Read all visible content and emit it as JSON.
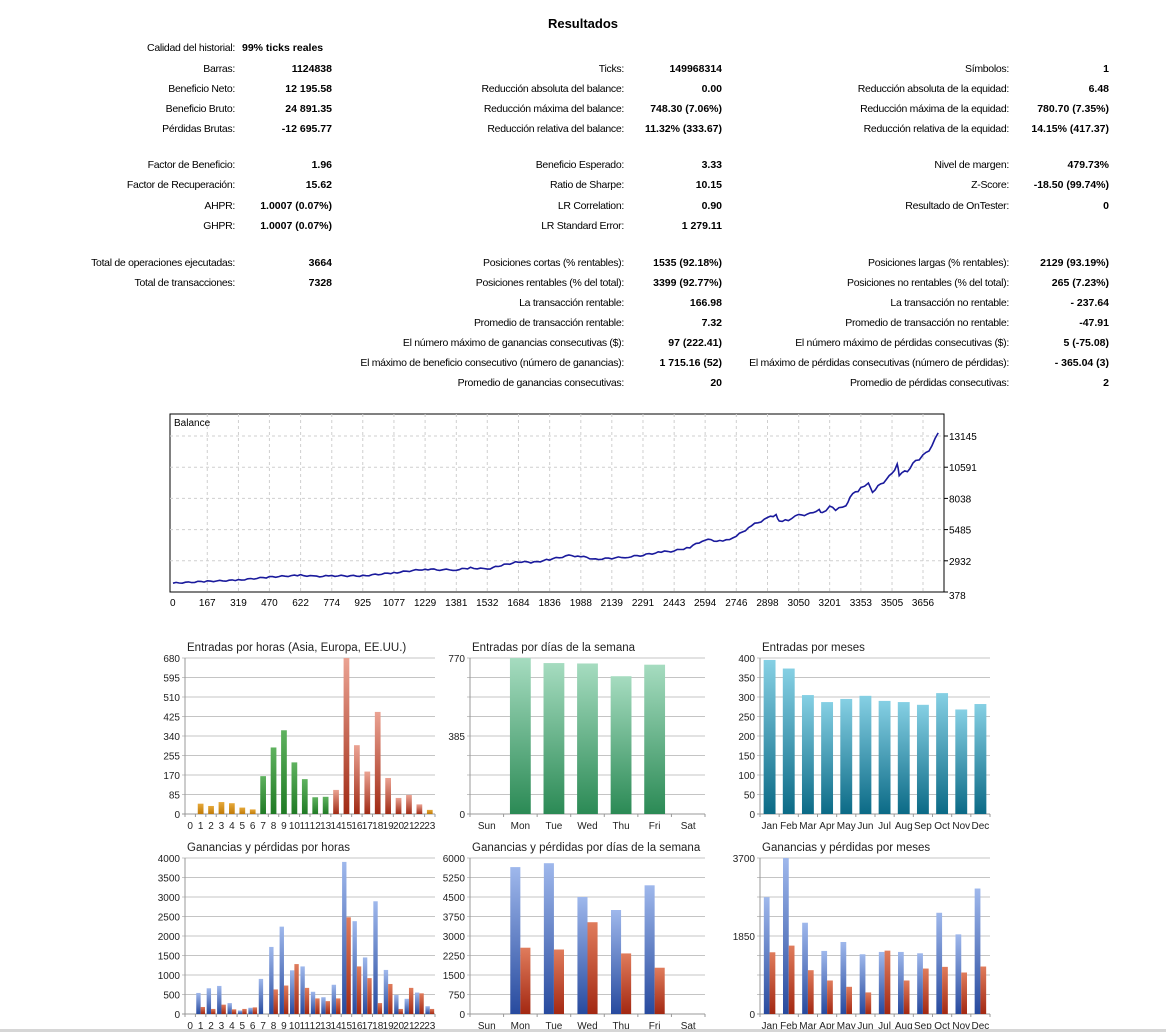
{
  "report": {
    "title": "Resultados",
    "rows": [
      {
        "top": 0,
        "cells": [
          {
            "label": "Calidad del historial:",
            "value": "99% ticks reales",
            "align": "left"
          },
          null,
          null
        ]
      },
      {
        "cells": [
          {
            "label": "Barras:",
            "value": "1124838"
          },
          {
            "label": "Ticks:",
            "value": "149968314"
          },
          {
            "label": "Símbolos:",
            "value": "1"
          }
        ]
      },
      {
        "cells": [
          {
            "label": "Beneficio Neto:",
            "value": "12 195.58"
          },
          {
            "label": "Reducción absoluta del balance:",
            "value": "0.00"
          },
          {
            "label": "Reducción absoluta de la equidad:",
            "value": "6.48"
          }
        ]
      },
      {
        "cells": [
          {
            "label": "Beneficio Bruto:",
            "value": "24 891.35"
          },
          {
            "label": "Reducción máxima del balance:",
            "value": "748.30 (7.06%)"
          },
          {
            "label": "Reducción máxima de la equidad:",
            "value": "780.70 (7.35%)"
          }
        ]
      },
      {
        "cells": [
          {
            "label": "Pérdidas Brutas:",
            "value": "-12 695.77"
          },
          {
            "label": "Reducción relativa del balance:",
            "value": "11.32% (333.67)"
          },
          {
            "label": "Reducción relativa de la equidad:",
            "value": "14.15% (417.37)"
          }
        ]
      },
      {
        "cells": [
          {
            "label": "Factor de Beneficio:",
            "value": "1.96"
          },
          {
            "label": "Beneficio Esperado:",
            "value": "3.33"
          },
          {
            "label": "Nivel de margen:",
            "value": "479.73%"
          }
        ]
      },
      {
        "cells": [
          {
            "label": "Factor de Recuperación:",
            "value": "15.62"
          },
          {
            "label": "Ratio de Sharpe:",
            "value": "10.15"
          },
          {
            "label": "Z-Score:",
            "value": "-18.50 (99.74%)"
          }
        ]
      },
      {
        "cells": [
          {
            "label": "AHPR:",
            "value": "1.0007 (0.07%)"
          },
          {
            "label": "LR Correlation:",
            "value": "0.90"
          },
          {
            "label": "Resultado de OnTester:",
            "value": "0"
          }
        ]
      },
      {
        "cells": [
          {
            "label": "GHPR:",
            "value": "1.0007 (0.07%)"
          },
          {
            "label": "LR Standard Error:",
            "value": "1 279.11"
          },
          null
        ]
      },
      {
        "cells": [
          {
            "label": "Total de operaciones ejecutadas:",
            "value": "3664"
          },
          {
            "label": "Posiciones cortas (% rentables):",
            "value": "1535 (92.18%)"
          },
          {
            "label": "Posiciones largas (% rentables):",
            "value": "2129 (93.19%)"
          }
        ]
      },
      {
        "cells": [
          {
            "label": "Total de transacciones:",
            "value": "7328"
          },
          {
            "label": "Posiciones rentables (% del total):",
            "value": "3399 (92.77%)"
          },
          {
            "label": "Posiciones no rentables (% del total):",
            "value": "265 (7.23%)"
          }
        ]
      },
      {
        "cells": [
          null,
          {
            "label": "La transacción rentable:",
            "value": "166.98"
          },
          {
            "label": "La transacción no rentable:",
            "value": "- 237.64"
          }
        ]
      },
      {
        "cells": [
          null,
          {
            "label": "Promedio de transacción rentable:",
            "value": "7.32"
          },
          {
            "label": "Promedio de transacción no rentable:",
            "value": "-47.91"
          }
        ]
      },
      {
        "cells": [
          null,
          {
            "label": "El número máximo de ganancias consecutivas ($):",
            "value": "97 (222.41)"
          },
          {
            "label": "El número máximo de pérdidas consecutivas ($):",
            "value": "5 (-75.08)"
          }
        ]
      },
      {
        "cells": [
          null,
          {
            "label": "El máximo de beneficio consecutivo (número de ganancias):",
            "value": "1 715.16 (52)"
          },
          {
            "label": "El máximo de pérdidas consecutivas (número de pérdidas):",
            "value": "- 365.04 (3)"
          }
        ]
      },
      {
        "cells": [
          null,
          {
            "label": "Promedio de ganancias consecutivas:",
            "value": "20"
          },
          {
            "label": "Promedio de pérdidas consecutivas:",
            "value": "2"
          }
        ]
      }
    ]
  },
  "chart_data": [
    {
      "type": "line",
      "title": "Balance",
      "color": "#1a1a9c",
      "y_ticks": [
        378,
        2932,
        5485,
        8038,
        10591,
        13145
      ],
      "x_ticks": [
        0,
        167,
        319,
        470,
        622,
        774,
        925,
        1077,
        1229,
        1381,
        1532,
        1684,
        1836,
        1988,
        2139,
        2291,
        2443,
        2594,
        2746,
        2898,
        3050,
        3201,
        3353,
        3505,
        3656
      ],
      "points": [
        [
          0,
          1100
        ],
        [
          167,
          1250
        ],
        [
          319,
          1350
        ],
        [
          470,
          1600
        ],
        [
          622,
          1750
        ],
        [
          700,
          1650
        ],
        [
          774,
          1700
        ],
        [
          925,
          1700
        ],
        [
          1077,
          1950
        ],
        [
          1229,
          2250
        ],
        [
          1300,
          2200
        ],
        [
          1381,
          2200
        ],
        [
          1450,
          2350
        ],
        [
          1532,
          2250
        ],
        [
          1600,
          2550
        ],
        [
          1684,
          2850
        ],
        [
          1760,
          2800
        ],
        [
          1836,
          3050
        ],
        [
          1930,
          3350
        ],
        [
          1988,
          3300
        ],
        [
          2060,
          3050
        ],
        [
          2139,
          3150
        ],
        [
          2220,
          3250
        ],
        [
          2291,
          3400
        ],
        [
          2380,
          3650
        ],
        [
          2443,
          3740
        ],
        [
          2520,
          4050
        ],
        [
          2594,
          4680
        ],
        [
          2680,
          4500
        ],
        [
          2746,
          4950
        ],
        [
          2820,
          5800
        ],
        [
          2898,
          6430
        ],
        [
          2940,
          6700
        ],
        [
          2955,
          6200
        ],
        [
          3000,
          6300
        ],
        [
          3050,
          6650
        ],
        [
          3120,
          6800
        ],
        [
          3150,
          7050
        ],
        [
          3165,
          6800
        ],
        [
          3201,
          7370
        ],
        [
          3230,
          7100
        ],
        [
          3280,
          7400
        ],
        [
          3300,
          8200
        ],
        [
          3353,
          8840
        ],
        [
          3390,
          9200
        ],
        [
          3410,
          8600
        ],
        [
          3450,
          9200
        ],
        [
          3505,
          10000
        ],
        [
          3530,
          10800
        ],
        [
          3540,
          10000
        ],
        [
          3580,
          10300
        ],
        [
          3620,
          11100
        ],
        [
          3656,
          11500
        ],
        [
          3700,
          12300
        ],
        [
          3730,
          13400
        ]
      ]
    },
    {
      "type": "bar",
      "title": "Entradas por horas (Asia, Europa, EE.UU.)",
      "categories": [
        "0",
        "1",
        "2",
        "3",
        "4",
        "5",
        "6",
        "7",
        "8",
        "9",
        "10",
        "11",
        "12",
        "13",
        "14",
        "15",
        "16",
        "17",
        "18",
        "19",
        "20",
        "21",
        "22",
        "23"
      ],
      "y_max": 680,
      "grid_lines": 8,
      "y_tick_labels": [
        "0",
        "85",
        "170",
        "255",
        "340",
        "425",
        "510",
        "595",
        "680"
      ],
      "series": [
        {
          "name": "Entradas",
          "values": [
            0,
            45,
            35,
            52,
            47,
            28,
            20,
            165,
            290,
            365,
            225,
            152,
            73,
            75,
            105,
            680,
            300,
            185,
            445,
            157,
            70,
            83,
            42,
            18
          ],
          "colors": [
            "orange",
            "orange",
            "orange",
            "orange",
            "orange",
            "orange",
            "orange",
            "green",
            "green",
            "green",
            "green",
            "green",
            "green",
            "green",
            "red",
            "red",
            "red",
            "red",
            "red",
            "red",
            "red",
            "red",
            "red",
            "orange"
          ]
        }
      ]
    },
    {
      "type": "bar",
      "title": "Entradas por días de la semana",
      "categories": [
        "Sun",
        "Mon",
        "Tue",
        "Wed",
        "Thu",
        "Fri",
        "Sat"
      ],
      "y_max": 770,
      "grid_lines": 8,
      "y_tick_labels": [
        "0",
        "",
        "",
        "",
        "385",
        "",
        "",
        "",
        "770"
      ],
      "series": [
        {
          "name": "Entradas",
          "values": [
            0,
            770,
            745,
            743,
            680,
            737,
            0
          ],
          "color": "mint"
        }
      ]
    },
    {
      "type": "bar",
      "title": "Entradas por meses",
      "categories": [
        "Jan",
        "Feb",
        "Mar",
        "Apr",
        "May",
        "Jun",
        "Jul",
        "Aug",
        "Sep",
        "Oct",
        "Nov",
        "Dec"
      ],
      "y_max": 400,
      "grid_lines": 8,
      "y_tick_labels": [
        "0",
        "50",
        "100",
        "150",
        "200",
        "250",
        "300",
        "350",
        "400"
      ],
      "series": [
        {
          "name": "Entradas",
          "values": [
            395,
            373,
            305,
            287,
            295,
            303,
            290,
            287,
            280,
            310,
            268,
            282
          ],
          "color": "teal"
        }
      ]
    },
    {
      "type": "bar",
      "title": "Ganancias y pérdidas por horas",
      "categories": [
        "0",
        "1",
        "2",
        "3",
        "4",
        "5",
        "6",
        "7",
        "8",
        "9",
        "10",
        "11",
        "12",
        "13",
        "14",
        "15",
        "16",
        "17",
        "18",
        "19",
        "20",
        "21",
        "22",
        "23"
      ],
      "y_max": 4000,
      "grid_lines": 8,
      "y_tick_labels": [
        "0",
        "500",
        "1000",
        "1500",
        "2000",
        "2500",
        "3000",
        "3500",
        "4000"
      ],
      "series": [
        {
          "name": "Ganancias",
          "color": "blue",
          "values": [
            0,
            540,
            660,
            720,
            280,
            90,
            160,
            900,
            1720,
            2240,
            1120,
            1220,
            570,
            430,
            750,
            3900,
            2380,
            1450,
            2890,
            1130,
            490,
            390,
            550,
            200
          ]
        },
        {
          "name": "Pérdidas",
          "color": "brick",
          "values": [
            0,
            180,
            130,
            240,
            120,
            130,
            170,
            0,
            630,
            730,
            1280,
            670,
            400,
            330,
            400,
            2480,
            1220,
            920,
            280,
            770,
            130,
            670,
            530,
            130
          ]
        }
      ]
    },
    {
      "type": "bar",
      "title": "Ganancias y pérdidas por días de la semana",
      "categories": [
        "Sun",
        "Mon",
        "Tue",
        "Wed",
        "Thu",
        "Fri",
        "Sat"
      ],
      "y_max": 6000,
      "grid_lines": 8,
      "y_tick_labels": [
        "0",
        "750",
        "1500",
        "2250",
        "3000",
        "3750",
        "4500",
        "5250",
        "6000"
      ],
      "series": [
        {
          "name": "Ganancias",
          "color": "blue",
          "values": [
            0,
            5650,
            5800,
            4500,
            4000,
            4950,
            0
          ]
        },
        {
          "name": "Pérdidas",
          "color": "brick",
          "values": [
            0,
            2550,
            2480,
            3530,
            2330,
            1780,
            0
          ]
        }
      ]
    },
    {
      "type": "bar",
      "title": "Ganancias y pérdidas por meses",
      "categories": [
        "Jan",
        "Feb",
        "Mar",
        "Apr",
        "May",
        "Jun",
        "Jul",
        "Aug",
        "Sep",
        "Oct",
        "Nov",
        "Dec"
      ],
      "y_max": 3700,
      "grid_lines": 8,
      "y_tick_labels": [
        "0",
        "",
        "",
        "",
        "1850",
        "",
        "",
        "",
        "3700"
      ],
      "series": [
        {
          "name": "Ganancias",
          "color": "blue",
          "values": [
            2771,
            3700,
            2165,
            1496,
            1708,
            1417,
            1472,
            1472,
            1440,
            2401,
            1889,
            2976
          ]
        },
        {
          "name": "Pérdidas",
          "color": "brick",
          "values": [
            1464,
            1622,
            1039,
            795,
            645,
            512,
            1503,
            795,
            1078,
            1118,
            984,
            1126
          ]
        }
      ]
    }
  ],
  "palette": {
    "orange": [
      "#e6a93a",
      "#c07a08"
    ],
    "green": [
      "#5fb25f",
      "#1f7a24"
    ],
    "red": [
      "#eba393",
      "#a02a14"
    ],
    "mint": [
      "#a6dcc0",
      "#2b8a55"
    ],
    "teal": [
      "#86d0e4",
      "#0b6a86"
    ],
    "blue": [
      "#9fb8ec",
      "#274a9e"
    ],
    "brick": [
      "#e07c5c",
      "#a32812"
    ]
  }
}
